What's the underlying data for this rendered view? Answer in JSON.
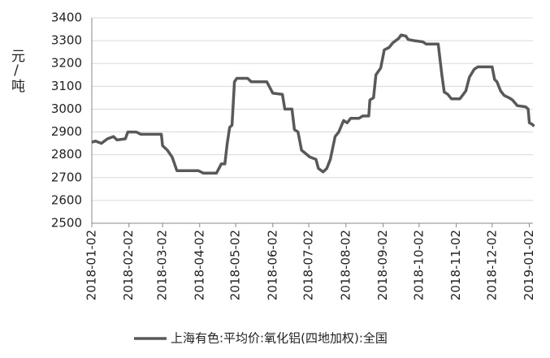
{
  "chart_data": {
    "type": "line",
    "y_label": "元/吨",
    "x": [
      "2018-01-02",
      "2018-01-05",
      "2018-01-10",
      "2018-01-15",
      "2018-01-20",
      "2018-01-23",
      "2018-01-30",
      "2018-02-01",
      "2018-02-08",
      "2018-02-12",
      "2018-03-01",
      "2018-03-02",
      "2018-03-06",
      "2018-03-10",
      "2018-03-14",
      "2018-03-20",
      "2018-04-01",
      "2018-04-05",
      "2018-04-16",
      "2018-04-20",
      "2018-04-23",
      "2018-04-25",
      "2018-04-27",
      "2018-04-29",
      "2018-05-01",
      "2018-05-03",
      "2018-05-12",
      "2018-05-15",
      "2018-05-28",
      "2018-06-02",
      "2018-06-10",
      "2018-06-12",
      "2018-06-18",
      "2018-06-20",
      "2018-06-23",
      "2018-06-26",
      "2018-07-03",
      "2018-07-08",
      "2018-07-10",
      "2018-07-14",
      "2018-07-17",
      "2018-07-20",
      "2018-07-24",
      "2018-07-27",
      "2018-07-31",
      "2018-08-03",
      "2018-08-06",
      "2018-08-13",
      "2018-08-16",
      "2018-08-21",
      "2018-08-22",
      "2018-08-25",
      "2018-08-27",
      "2018-08-31",
      "2018-09-03",
      "2018-09-07",
      "2018-09-10",
      "2018-09-15",
      "2018-09-17",
      "2018-09-21",
      "2018-09-23",
      "2018-09-28",
      "2018-10-05",
      "2018-10-08",
      "2018-10-18",
      "2018-10-21",
      "2018-10-23",
      "2018-10-26",
      "2018-10-29",
      "2018-11-05",
      "2018-11-10",
      "2018-11-13",
      "2018-11-17",
      "2018-11-20",
      "2018-12-02",
      "2018-12-04",
      "2018-12-06",
      "2018-12-09",
      "2018-12-12",
      "2018-12-16",
      "2018-12-19",
      "2018-12-23",
      "2018-12-30",
      "2019-01-01",
      "2019-01-02",
      "2019-01-04",
      "2019-01-06"
    ],
    "series": [
      {
        "name": "上海有色:平均价:氧化铝(四地加权):全国",
        "color": "#595959",
        "values": [
          2855,
          2860,
          2850,
          2870,
          2880,
          2865,
          2870,
          2900,
          2900,
          2890,
          2890,
          2840,
          2820,
          2790,
          2730,
          2730,
          2730,
          2720,
          2720,
          2760,
          2760,
          2850,
          2920,
          2930,
          3120,
          3135,
          3135,
          3120,
          3120,
          3070,
          3065,
          3000,
          3000,
          2910,
          2900,
          2820,
          2790,
          2780,
          2740,
          2725,
          2740,
          2780,
          2880,
          2900,
          2950,
          2940,
          2960,
          2960,
          2970,
          2970,
          3040,
          3050,
          3150,
          3180,
          3260,
          3270,
          3290,
          3310,
          3325,
          3320,
          3305,
          3300,
          3295,
          3285,
          3285,
          3150,
          3075,
          3065,
          3045,
          3045,
          3080,
          3140,
          3175,
          3185,
          3185,
          3130,
          3120,
          3080,
          3060,
          3050,
          3040,
          3015,
          3010,
          3000,
          2940,
          2935,
          2925
        ]
      }
    ],
    "xlim": [
      "2018-01-02",
      "2019-01-05"
    ],
    "xticks": [
      "2018-01-02",
      "2018-02-02",
      "2018-03-02",
      "2018-04-02",
      "2018-05-02",
      "2018-06-02",
      "2018-07-02",
      "2018-08-02",
      "2018-09-02",
      "2018-10-02",
      "2018-11-02",
      "2018-12-02",
      "2019-01-02"
    ],
    "ylim": [
      2500,
      3400
    ],
    "yticks": [
      2500,
      2600,
      2700,
      2800,
      2900,
      3000,
      3100,
      3200,
      3300,
      3400
    ],
    "grid": true,
    "legend": "bottom"
  }
}
